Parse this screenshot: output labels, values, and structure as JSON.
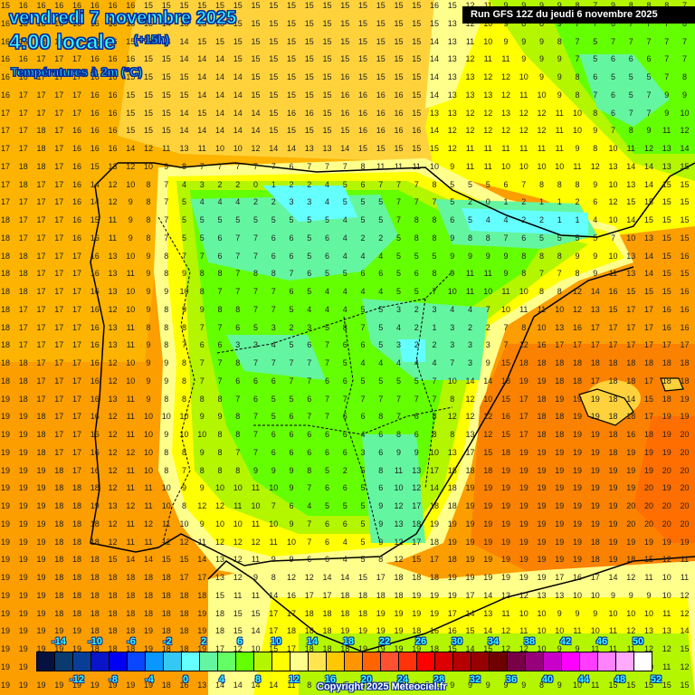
{
  "header": {
    "date": "vendredi 7 novembre 2025",
    "time": "4:00 locale",
    "lead": "(+15h)",
    "variable": "Températures à 2m (°C)",
    "run": "Run GFS 12Z du jeudi 6 novembre 2025"
  },
  "footer": {
    "copyright": "Copyright 2025 Meteociel.fr"
  },
  "legend": {
    "colors": [
      "#061140",
      "#0a3a6e",
      "#0a3e96",
      "#0a14c8",
      "#0000f5",
      "#0a46ff",
      "#0a96ff",
      "#35c8f5",
      "#64ffff",
      "#64f5a0",
      "#64ff64",
      "#64ff00",
      "#b4f500",
      "#ffff00",
      "#ffff8c",
      "#ffe650",
      "#ffc800",
      "#ff9600",
      "#ff6400",
      "#ff5032",
      "#ff320a",
      "#ff0000",
      "#dc0000",
      "#b40000",
      "#960000",
      "#6e0000",
      "#780046",
      "#96007a",
      "#c800c8",
      "#ff00ff",
      "#ff3cff",
      "#ff82ff",
      "#ffaaff",
      "#ffffff"
    ],
    "top_labels": [
      "-14",
      "-10",
      "-6",
      "-2",
      "2",
      "6",
      "10",
      "14",
      "18",
      "22",
      "26",
      "30",
      "34",
      "38",
      "42",
      "46",
      "50"
    ],
    "bottom_labels": [
      "-12",
      "-8",
      "-4",
      "0",
      "4",
      "8",
      "12",
      "16",
      "20",
      "24",
      "28",
      "32",
      "36",
      "40",
      "44",
      "48",
      "52"
    ]
  },
  "map": {
    "region": "Péninsule Ibérique",
    "units": "°C",
    "grid_rows": [
      "15 16 16 16 16 16 16 16 15 15 15 15 15 15 15 15 15 15 15 15 15 15 15 15 16 15 12 11 9 9 9 9 8 7 9 8 8 8 7",
      "16 16 16 16 16 16 16 16 15 14 15 15 15 15 15 15 15 15 15 15 15 15 15 15 15 13 12 10 9 8 8 9 7 7 6 7 7 7 8",
      "16 16 16 16 16 16 16 15 15 14 14 15 15 15 15 15 15 15 15 15 15 15 15 15 14 13 11 10 9 9 9 8 7 5 7 7 7 7 7",
      "16 16 17 17 17 16 16 16 15 15 14 14 14 15 15 15 15 15 15 15 15 15 15 15 14 13 12 11 11 9 9 9 7 5 6 6 6 7 7",
      "16 16 17 17 17 16 16 15 15 15 15 14 14 14 15 15 15 15 15 16 15 15 15 15 14 13 13 12 12 10 9 9 8 6 5 5 5 7 8",
      "16 17 17 17 17 16 16 15 15 15 15 14 14 14 15 15 15 15 15 16 16 16 16 15 14 13 13 13 12 11 10 9 8 7 6 5 7 9 9",
      "17 17 17 17 17 16 16 15 15 15 14 15 14 14 14 15 16 16 15 16 16 16 16 15 13 13 12 12 13 12 12 11 10 8 6 7 7 9 10",
      "17 17 18 17 16 16 16 15 15 15 14 14 14 14 14 15 15 15 15 15 16 16 16 16 14 12 12 12 12 12 12 11 10 9 7 8 9 11 12",
      "17 17 18 17 16 16 16 14 12 11 13 11 10 10 12 14 14 13 13 14 15 15 15 15 15 12 11 11 11 11 11 11 9 8 10 11 12 13 14",
      "17 18 18 17 16 15 13 12 10 9 8 7 7 7 7 7 6 7 7 7 8 11 11 11 10 9 11 11 10 10 10 10 11 12 13 14 14 13 15",
      "17 18 17 17 16 14 12 10 8 7 4 3 2 2 0 1 2 2 4 5 6 7 7 7 8 5 5 5 6 7 8 8 8 9 10 13 14 15 15",
      "17 17 17 17 16 14 12 9 8 7 5 4 4 4 2 2 3 3 4 5 5 5 7 7 7 5 2 0 1 2 1 1 2 6 12 15 15 15 15",
      "18 17 17 17 16 15 11 9 8 7 5 5 5 5 5 5 5 5 5 4 5 5 7 8 8 6 5 4 4 2 2 1 1 4 10 14 15 15 15",
      "18 17 17 17 16 16 11 9 8 7 5 5 6 7 7 6 6 5 6 4 2 2 5 8 8 9 8 8 7 6 5 5 5 5 7 10 13 15 15",
      "18 18 17 17 17 16 13 10 9 8 7 7 6 7 7 6 6 5 6 4 4 4 5 5 5 9 9 9 9 8 8 8 9 9 10 13 14 15 16",
      "18 18 17 17 17 16 13 11 9 8 9 8 8 7 8 8 7 6 5 5 6 6 5 6 8 9 11 11 9 8 7 7 8 9 11 13 14 15 15",
      "18 18 17 17 17 16 13 10 9 9 10 8 7 7 7 7 6 5 4 4 4 4 5 5 7 10 11 10 11 10 8 8 12 14 16 15 15 15 16",
      "18 17 17 17 17 16 12 10 9 8 9 9 8 8 7 7 5 4 4 4 5 5 3 2 3 4 4 7 10 11 11 10 12 13 15 17 17 16 16",
      "18 17 17 17 17 16 13 11 8 8 8 7 7 6 5 3 2 3 5 8 7 5 4 2 1 3 2 2 7 8 10 13 16 17 17 17 17 16 16",
      "18 17 17 17 17 16 13 11 9 8 7 6 6 3 3 4 5 6 7 6 6 5 3 2 2 3 3 3 7 12 16 17 17 17 17 17 17 17 17",
      "18 18 17 17 17 16 12 10 9 9 8 7 7 8 7 7 7 7 7 5 4 4 4 4 4 7 3 9 15 18 18 18 18 18 18 18 18 18 18",
      "18 18 17 17 17 16 12 10 9 9 8 7 7 6 6 6 7 7 6 6 5 5 5 5 7 10 14 14 18 19 19 18 18 17 18 18 17 18 18",
      "19 18 17 17 17 16 13 11 9 8 8 8 8 7 6 5 5 6 7 7 7 7 7 7 7 8 12 10 15 17 18 19 19 19 18 14 15 18 19",
      "19 19 18 17 17 16 12 11 10 10 10 9 9 8 7 5 6 7 7 6 6 8 7 6 8 12 12 12 16 17 18 18 19 19 18 18 17 19 19",
      "19 19 18 17 17 16 12 11 10 9 10 10 8 8 7 6 6 6 6 6 4 6 8 6 8 8 13 12 15 17 18 18 19 19 18 16 18 19 20",
      "19 19 18 17 17 16 12 12 10 8 8 9 8 7 7 6 6 6 6 6 3 6 9 9 10 13 17 15 18 19 19 19 19 19 18 19 19 19 20",
      "19 19 19 18 17 16 12 11 10 8 7 8 8 8 9 9 9 8 5 2 5 8 11 13 17 18 18 18 19 19 19 19 19 19 19 19 19 20 20",
      "19 19 19 18 18 18 12 11 11 10 9 9 10 10 11 10 9 7 6 6 5 6 10 12 14 18 19 19 19 19 19 19 19 19 19 19 20 19 20",
      "19 19 19 18 18 19 13 12 11 10 8 12 12 11 10 7 6 4 5 5 5 9 12 17 18 18 19 19 19 19 19 19 19 19 19 20 20 20 20",
      "19 19 19 18 18 18 12 11 12 11 10 9 10 10 11 10 9 7 6 6 5 9 13 18 19 19 19 19 19 19 19 19 19 19 19 20 20 20 20",
      "19 19 19 18 18 18 12 11 11 12 12 11 12 12 12 11 10 7 6 4 5 9 12 17 18 19 19 19 19 19 19 19 19 18 19 19 19 19 19",
      "19 19 19 18 18 18 15 14 14 15 15 14 13 12 11 9 9 6 6 4 5 8 12 15 17 18 19 19 19 19 19 19 19 18 19 18 15 12 11",
      "19 19 19 18 18 18 18 18 18 18 17 17 13 12 9 8 12 12 14 14 15 17 18 18 18 19 19 19 19 19 19 17 16 17 14 12 11 10 11",
      "19 19 19 18 18 18 18 18 18 18 18 18 15 11 11 14 16 17 17 18 18 18 18 19 19 19 17 14 13 12 13 13 10 10 9 9 9 10 12",
      "19 19 19 18 18 18 18 18 18 18 18 19 18 15 15 17 17 18 18 18 18 19 19 19 19 17 14 13 11 10 10 9 9 9 10 10 10 11 12",
      "19 19 19 19 19 18 18 18 19 18 18 19 18 15 14 17 18 18 18 19 19 19 19 18 16 16 15 14 12 11 10 10 11 10 11 12 13 13 14",
      "19 19 19 19 19 18 18 18 19 18 18 19 17 12 10 15 17 18 18 18 19 19 19 19 18 15 14 15 12 12 10 9 9 11 11 11 12 12 15",
      "19 19 19 19 19 19 19 19 19 18 18 19 17 12 13 14 14 14 11 8 7 9 11 13 10 10 7 7 7 8 8 8 8 9 9 9 10 11 12",
      "19 19 19 19 19 19 19 19 19 18 16 13 14 14 14 14 11 8 8 8 8 8 8 8 9 9 9 9 9 9 8 9 10 11 15 15 15 15 15"
    ]
  }
}
